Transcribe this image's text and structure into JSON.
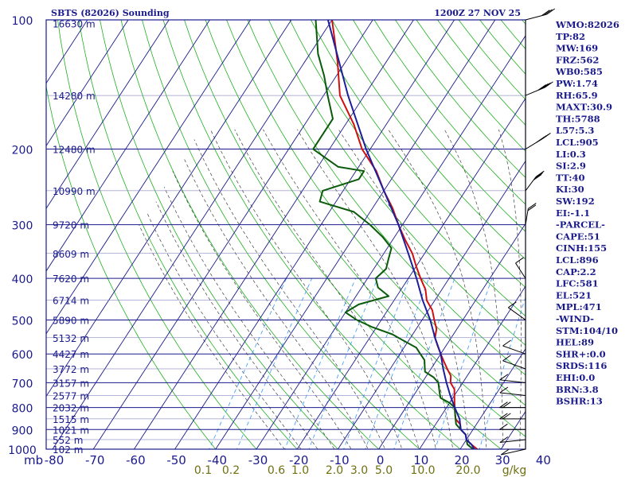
{
  "chart_data": {
    "type": "skew-t",
    "title": "SBTS (82026) Sounding",
    "time": "1200Z 27 NOV 25",
    "y_unit": "mb",
    "pressure_ticks": [
      100,
      200,
      300,
      400,
      500,
      600,
      700,
      800,
      900,
      1000
    ],
    "temperature_ticks": [
      -80,
      -70,
      -60,
      -50,
      -40,
      -30,
      -20,
      -10,
      0,
      10,
      20,
      30,
      40
    ],
    "temperature_tick_labels": [
      "-80",
      "-70",
      "-60",
      "-50",
      "-40",
      "-30",
      "-20",
      "-10",
      "0",
      "10",
      "20",
      "30",
      "40"
    ],
    "mixing_ratio_labels": [
      "0.1",
      "0.2",
      "0.6",
      "1.0",
      "2.0",
      "3.0",
      "5.0",
      "10.0",
      "20.0",
      "g/kg"
    ],
    "height_labels": [
      {
        "p": 102,
        "label": "16630 m"
      },
      {
        "p": 150,
        "label": "14280 m"
      },
      {
        "p": 200,
        "label": "12480 m"
      },
      {
        "p": 250,
        "label": "10990 m"
      },
      {
        "p": 300,
        "label": "9720 m"
      },
      {
        "p": 350,
        "label": "8609 m"
      },
      {
        "p": 400,
        "label": "7620 m"
      },
      {
        "p": 450,
        "label": "6714 m"
      },
      {
        "p": 500,
        "label": "5890 m"
      },
      {
        "p": 550,
        "label": "5132 m"
      },
      {
        "p": 600,
        "label": "4427 m"
      },
      {
        "p": 650,
        "label": "3772 m"
      },
      {
        "p": 700,
        "label": "3157 m"
      },
      {
        "p": 750,
        "label": "2577 m"
      },
      {
        "p": 800,
        "label": "2032 m"
      },
      {
        "p": 850,
        "label": "1515 m"
      },
      {
        "p": 900,
        "label": "1021 m"
      },
      {
        "p": 950,
        "label": "552 m"
      },
      {
        "p": 1000,
        "label": "102 m"
      }
    ],
    "series": [
      {
        "name": "",
        "role": "temperature",
        "color": "#d01010",
        "points": [
          [
            1010,
            25
          ],
          [
            975,
            22
          ],
          [
            950,
            20
          ],
          [
            925,
            19
          ],
          [
            900,
            17
          ],
          [
            875,
            16
          ],
          [
            850,
            14
          ],
          [
            825,
            13
          ],
          [
            800,
            12
          ],
          [
            775,
            11
          ],
          [
            750,
            10
          ],
          [
            725,
            9
          ],
          [
            700,
            7
          ],
          [
            675,
            6
          ],
          [
            650,
            4
          ],
          [
            625,
            2
          ],
          [
            600,
            0
          ],
          [
            575,
            -2
          ],
          [
            550,
            -4
          ],
          [
            525,
            -5
          ],
          [
            500,
            -7
          ],
          [
            475,
            -9
          ],
          [
            450,
            -12
          ],
          [
            425,
            -14
          ],
          [
            400,
            -17
          ],
          [
            375,
            -20
          ],
          [
            350,
            -23
          ],
          [
            325,
            -27
          ],
          [
            300,
            -31
          ],
          [
            275,
            -35
          ],
          [
            250,
            -40
          ],
          [
            225,
            -45
          ],
          [
            200,
            -52
          ],
          [
            175,
            -58
          ],
          [
            150,
            -66
          ],
          [
            125,
            -72
          ],
          [
            100,
            -80
          ]
        ]
      },
      {
        "name": "",
        "role": "dewpoint",
        "color": "#0a5a0a",
        "points": [
          [
            1010,
            24
          ],
          [
            975,
            21
          ],
          [
            950,
            20
          ],
          [
            925,
            19
          ],
          [
            900,
            17
          ],
          [
            875,
            15
          ],
          [
            850,
            14
          ],
          [
            825,
            13
          ],
          [
            800,
            12
          ],
          [
            780,
            10
          ],
          [
            760,
            7
          ],
          [
            740,
            6
          ],
          [
            720,
            5
          ],
          [
            700,
            4
          ],
          [
            680,
            2
          ],
          [
            660,
            -1
          ],
          [
            640,
            -2
          ],
          [
            620,
            -3
          ],
          [
            600,
            -5
          ],
          [
            580,
            -7
          ],
          [
            560,
            -11
          ],
          [
            540,
            -15
          ],
          [
            520,
            -21
          ],
          [
            500,
            -26
          ],
          [
            480,
            -30
          ],
          [
            460,
            -28
          ],
          [
            440,
            -22
          ],
          [
            420,
            -26
          ],
          [
            400,
            -28
          ],
          [
            380,
            -27
          ],
          [
            360,
            -28
          ],
          [
            340,
            -29
          ],
          [
            320,
            -33
          ],
          [
            300,
            -38
          ],
          [
            280,
            -44
          ],
          [
            265,
            -54
          ],
          [
            250,
            -55
          ],
          [
            235,
            -48
          ],
          [
            225,
            -48
          ],
          [
            220,
            -55
          ],
          [
            200,
            -64
          ],
          [
            170,
            -64
          ],
          [
            150,
            -69
          ],
          [
            135,
            -73
          ],
          [
            120,
            -78
          ],
          [
            100,
            -84
          ]
        ]
      },
      {
        "name": "",
        "role": "parcel",
        "color": "#1e1e9a",
        "points": [
          [
            1010,
            24
          ],
          [
            975,
            22
          ],
          [
            950,
            20
          ],
          [
            925,
            19
          ],
          [
            900,
            17
          ],
          [
            875,
            16
          ],
          [
            850,
            15
          ],
          [
            800,
            12
          ],
          [
            750,
            9
          ],
          [
            700,
            6
          ],
          [
            650,
            3
          ],
          [
            600,
            0
          ],
          [
            550,
            -4
          ],
          [
            500,
            -8
          ],
          [
            450,
            -13
          ],
          [
            400,
            -18
          ],
          [
            350,
            -24
          ],
          [
            300,
            -31
          ],
          [
            250,
            -40
          ],
          [
            200,
            -51
          ],
          [
            150,
            -64
          ],
          [
            100,
            -81
          ]
        ]
      }
    ],
    "indices": [
      "WMO:82026",
      "TP:82",
      "MW:169",
      "FRZ:562",
      "WB0:585",
      "PW:1.74",
      "RH:65.9",
      "MAXT:30.9",
      "TH:5788",
      "L57:5.3",
      "LCL:905",
      "LI:0.3",
      "SI:2.9",
      "TT:40",
      "KI:30",
      "SW:192",
      "EI:-1.1",
      "-PARCEL-",
      "CAPE:51",
      "CINH:155",
      "LCL:896",
      "CAP:2.2",
      "LFC:581",
      "EL:521",
      "MPL:471",
      "-WIND-",
      "STM:104/10",
      "HEL:89",
      "SHR+:0.0",
      "SRDS:116",
      "EHI:0.0",
      "BRN:3.8",
      "BSHR:13"
    ],
    "wind_profile": [
      {
        "p": 1000,
        "dir": 110,
        "spd": 5
      },
      {
        "p": 950,
        "dir": 100,
        "spd": 10
      },
      {
        "p": 900,
        "dir": 90,
        "spd": 10
      },
      {
        "p": 850,
        "dir": 90,
        "spd": 15
      },
      {
        "p": 800,
        "dir": 90,
        "spd": 15
      },
      {
        "p": 750,
        "dir": 80,
        "spd": 10
      },
      {
        "p": 700,
        "dir": 80,
        "spd": 10
      },
      {
        "p": 650,
        "dir": 60,
        "spd": 5
      },
      {
        "p": 600,
        "dir": 60,
        "spd": 5
      },
      {
        "p": 500,
        "dir": 40,
        "spd": 5
      },
      {
        "p": 400,
        "dir": 20,
        "spd": 10
      },
      {
        "p": 300,
        "dir": 350,
        "spd": 20
      },
      {
        "p": 250,
        "dir": 330,
        "spd": 30
      },
      {
        "p": 200,
        "dir": 310,
        "spd": 35
      },
      {
        "p": 150,
        "dir": 300,
        "spd": 40
      },
      {
        "p": 100,
        "dir": 290,
        "spd": 30
      }
    ],
    "ylim": [
      100,
      1000
    ],
    "xlim": [
      -80,
      40
    ],
    "grid": true,
    "colors": {
      "isobar": "#1a1a8c",
      "isotherm": "#1a1a8c",
      "dry_adiabat": "#20b020",
      "moist_adiabat": "#404040",
      "mixing_ratio": "#3399ff",
      "axis_label": "#1a1a8c",
      "mixing_label": "#707010"
    }
  }
}
